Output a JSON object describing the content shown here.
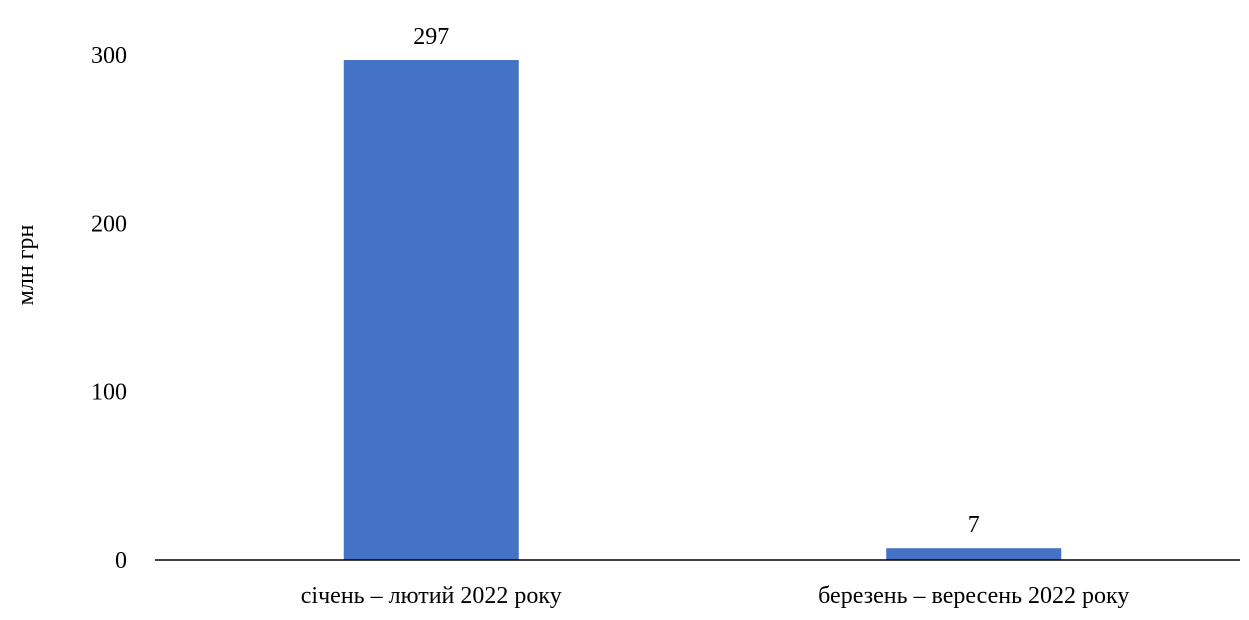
{
  "chart_data": {
    "type": "bar",
    "categories": [
      "січень – лютий 2022 року",
      "березень – вересень 2022 року"
    ],
    "values": [
      297,
      7
    ],
    "data_labels": [
      "297",
      "7"
    ],
    "title": "",
    "xlabel": "",
    "ylabel": "млн грн",
    "ylim": [
      0,
      300
    ],
    "yticks": [
      0,
      100,
      200,
      300
    ],
    "ytick_labels": [
      "0",
      "100",
      "200",
      "300"
    ],
    "grid": false,
    "legend": "none",
    "bar_color": "#4472C4",
    "axis_color": "#000000"
  }
}
